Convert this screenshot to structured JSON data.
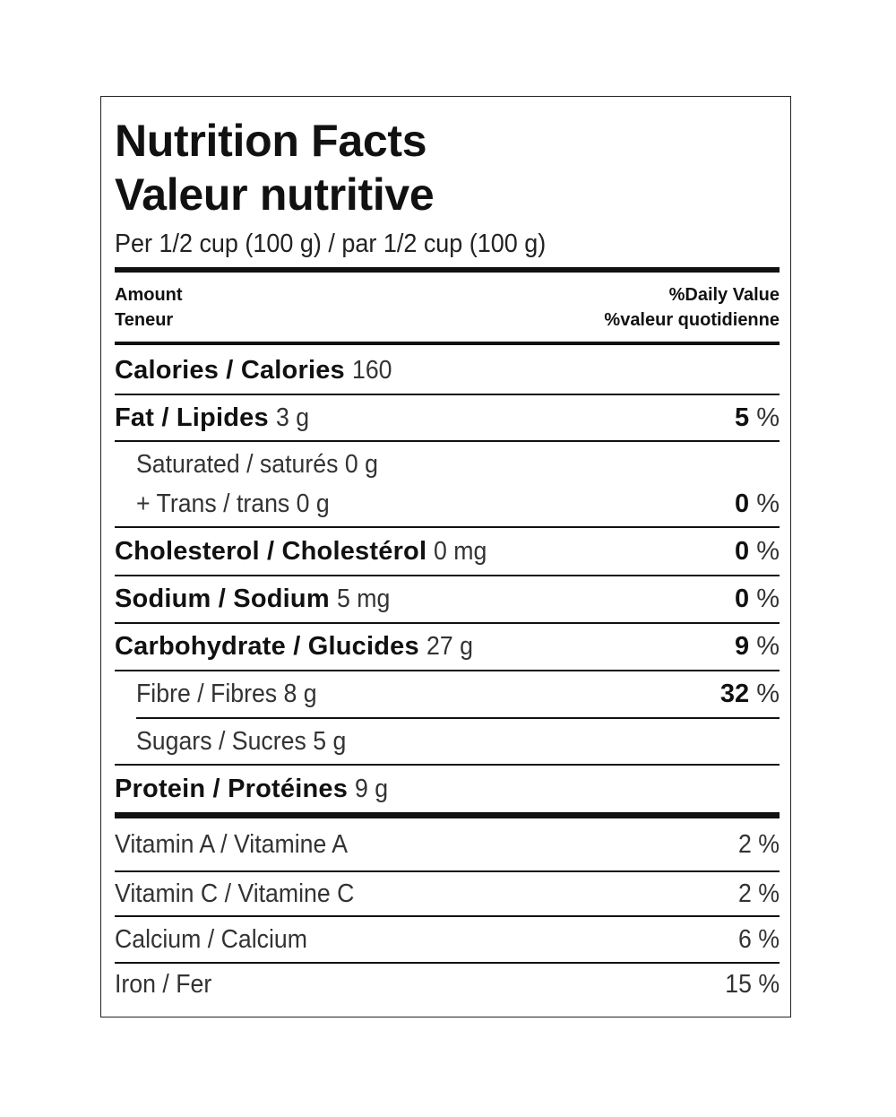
{
  "label": {
    "title_en": "Nutrition Facts",
    "title_fr": "Valeur nutritive",
    "serving": "Per 1/2 cup (100 g) / par 1/2 cup (100 g)",
    "header": {
      "amount_en": "Amount",
      "amount_fr": "Teneur",
      "dv_en": "%Daily Value",
      "dv_fr": "%valeur quotidienne"
    },
    "calories": {
      "label": "Calories / Calories",
      "amount": "160"
    },
    "nutrients": [
      {
        "label": "Fat / Lipides",
        "amount": "3 g",
        "dv": "5",
        "unit": "%"
      },
      {
        "label": "Saturated / saturés 0 g",
        "label2": "+ Trans / trans 0 g",
        "dv": "0",
        "unit": "%"
      },
      {
        "label": "Cholesterol / Cholestérol",
        "amount": "0 mg",
        "dv": "0",
        "unit": "%"
      },
      {
        "label": "Sodium / Sodium",
        "amount": "5 mg",
        "dv": "0",
        "unit": "%"
      },
      {
        "label": "Carbohydrate / Glucides",
        "amount": "27 g",
        "dv": "9",
        "unit": "%"
      },
      {
        "label": "Fibre / Fibres 8 g",
        "dv": "32",
        "unit": "%"
      },
      {
        "label": "Sugars / Sucres 5 g"
      },
      {
        "label": "Protein / Protéines",
        "amount": "9 g"
      }
    ],
    "vitamins": [
      {
        "label": "Vitamin A / Vitamine A",
        "dv": "2 %"
      },
      {
        "label": "Vitamin C / Vitamine C",
        "dv": "2 %"
      },
      {
        "label": "Calcium / Calcium",
        "dv": "6 %"
      },
      {
        "label": "Iron / Fer",
        "dv": "15 %"
      }
    ]
  }
}
